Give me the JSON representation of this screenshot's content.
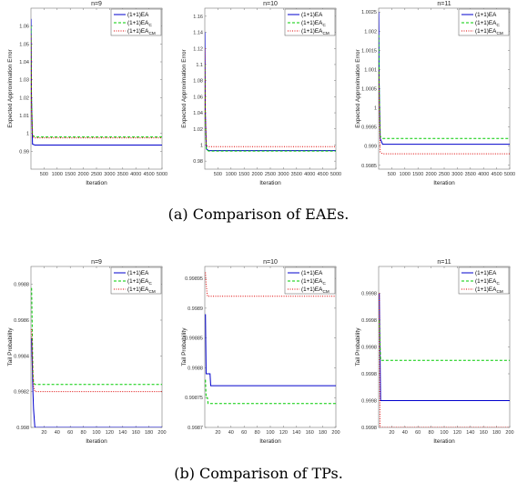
{
  "captions": [
    "(a) Comparison of EAEs.",
    "(b) Comparison of TPs."
  ],
  "legend": [
    {
      "main": "(1+1)EA",
      "sub": "",
      "color": "#0000cc",
      "dash": ""
    },
    {
      "main": "(1+1)EA",
      "sub": "C",
      "color": "#00cc00",
      "dash": "3,2"
    },
    {
      "main": "(1+1)EA",
      "sub": "CM",
      "color": "#dd0000",
      "dash": "1,1.5"
    }
  ],
  "chart_data": [
    {
      "type": "line",
      "title": "n=9",
      "xlabel": "Iteration",
      "ylabel": "Expected Approximation Error",
      "xlim": [
        0,
        5000
      ],
      "ylim": [
        0.98,
        1.07
      ],
      "xticks": [
        500,
        1000,
        1500,
        2000,
        2500,
        3000,
        3500,
        4000,
        4500,
        5000
      ],
      "yticks": [
        0.99,
        1,
        1.01,
        1.02,
        1.03,
        1.04,
        1.05,
        1.06
      ],
      "yticklabels": [
        "0.99",
        "1",
        "1.01",
        "1.02",
        "1.03",
        "1.04",
        "1.05",
        "1.06"
      ],
      "series": [
        {
          "name": "(1+1)EA",
          "x": [
            1,
            20,
            60,
            150,
            5000
          ],
          "y": [
            1.064,
            1.02,
            0.994,
            0.9935,
            0.9935
          ]
        },
        {
          "name": "(1+1)EA_C",
          "x": [
            1,
            20,
            60,
            150,
            5000
          ],
          "y": [
            1.06,
            1.02,
            0.999,
            0.998,
            0.998
          ]
        },
        {
          "name": "(1+1)EA_CM",
          "x": [
            1,
            20,
            60,
            150,
            5000
          ],
          "y": [
            1.055,
            1.015,
            0.998,
            0.9975,
            0.9975
          ]
        }
      ]
    },
    {
      "type": "line",
      "title": "n=10",
      "xlabel": "Iteration",
      "ylabel": "Expected Approximation Error",
      "xlim": [
        0,
        5000
      ],
      "ylim": [
        0.97,
        1.17
      ],
      "xticks": [
        500,
        1000,
        1500,
        2000,
        2500,
        3000,
        3500,
        4000,
        4500,
        5000
      ],
      "yticks": [
        0.98,
        1,
        1.02,
        1.04,
        1.06,
        1.08,
        1.1,
        1.12,
        1.14,
        1.16
      ],
      "yticklabels": [
        "0.98",
        "1",
        "1.02",
        "1.04",
        "1.06",
        "1.08",
        "1.1",
        "1.12",
        "1.14",
        "1.16"
      ],
      "series": [
        {
          "name": "(1+1)EA",
          "x": [
            1,
            20,
            60,
            150,
            5000
          ],
          "y": [
            1.14,
            1.04,
            0.995,
            0.993,
            0.993
          ]
        },
        {
          "name": "(1+1)EA_C",
          "x": [
            1,
            20,
            60,
            150,
            5000
          ],
          "y": [
            1.1,
            1.03,
            0.994,
            0.9925,
            0.9925
          ]
        },
        {
          "name": "(1+1)EA_CM",
          "x": [
            1,
            20,
            60,
            150,
            5000
          ],
          "y": [
            1.12,
            1.04,
            0.999,
            0.998,
            0.998
          ]
        }
      ]
    },
    {
      "type": "line",
      "title": "n=11",
      "xlabel": "Iteration",
      "ylabel": "Expected Approximation Error",
      "xlim": [
        0,
        5000
      ],
      "ylim": [
        0.9984,
        1.0026
      ],
      "xticks": [
        500,
        1000,
        1500,
        2000,
        2500,
        3000,
        3500,
        4000,
        4500,
        5000
      ],
      "yticks": [
        0.9985,
        0.999,
        0.9995,
        1,
        1.0005,
        1.001,
        1.0015,
        1.002,
        1.0025
      ],
      "yticklabels": [
        "0.9985",
        "0.999",
        "0.9995",
        "1",
        "1.0005",
        "1.001",
        "1.0015",
        "1.002",
        "1.0025"
      ],
      "series": [
        {
          "name": "(1+1)EA",
          "x": [
            1,
            20,
            60,
            150,
            5000
          ],
          "y": [
            1.0025,
            1.0006,
            0.9992,
            0.99905,
            0.99905
          ]
        },
        {
          "name": "(1+1)EA_C",
          "x": [
            1,
            20,
            60,
            150,
            5000
          ],
          "y": [
            1.0019,
            1.0006,
            0.99925,
            0.9992,
            0.9992
          ]
        },
        {
          "name": "(1+1)EA_CM",
          "x": [
            1,
            20,
            60,
            150,
            5000
          ],
          "y": [
            1.001,
            1.0002,
            0.99885,
            0.9988,
            0.9988
          ]
        }
      ]
    },
    {
      "type": "line",
      "title": "n=9",
      "xlabel": "Iteration",
      "ylabel": "Tail Probability",
      "xlim": [
        0,
        200
      ],
      "ylim": [
        0.998,
        0.9989
      ],
      "xticks": [
        20,
        40,
        60,
        80,
        100,
        120,
        140,
        160,
        180,
        200
      ],
      "yticks": [
        0.998,
        0.9982,
        0.9984,
        0.9986,
        0.9988
      ],
      "yticklabels": [
        "0.998",
        "0.9982",
        "0.9984",
        "0.9986",
        "0.9988"
      ],
      "series": [
        {
          "name": "(1+1)EA",
          "x": [
            1,
            3,
            4,
            6,
            200
          ],
          "y": [
            0.9985,
            0.9982,
            0.9981,
            0.998,
            0.998
          ]
        },
        {
          "name": "(1+1)EA_C",
          "x": [
            1,
            3,
            4,
            6,
            200
          ],
          "y": [
            0.99878,
            0.9983,
            0.99825,
            0.99824,
            0.99824
          ]
        },
        {
          "name": "(1+1)EA_CM",
          "x": [
            1,
            3,
            4,
            6,
            200
          ],
          "y": [
            0.99855,
            0.9983,
            0.99823,
            0.9982,
            0.9982
          ]
        }
      ]
    },
    {
      "type": "line",
      "title": "n=10",
      "xlabel": "Iteration",
      "ylabel": "Tail Probability",
      "xlim": [
        0,
        200
      ],
      "ylim": [
        0.9987,
        0.99897
      ],
      "xticks": [
        20,
        40,
        60,
        80,
        100,
        120,
        140,
        160,
        180,
        200
      ],
      "yticks": [
        0.9987,
        0.99875,
        0.9988,
        0.99885,
        0.9989,
        0.99895
      ],
      "yticklabels": [
        "0.9987",
        "0.99875",
        "0.9988",
        "0.99885",
        "0.9989",
        "0.99895"
      ],
      "series": [
        {
          "name": "(1+1)EA",
          "x": [
            1,
            2,
            8,
            9,
            200
          ],
          "y": [
            0.99889,
            0.99879,
            0.99879,
            0.99877,
            0.99877
          ]
        },
        {
          "name": "(1+1)EA_C",
          "x": [
            1,
            2,
            4,
            5,
            200
          ],
          "y": [
            0.99878,
            0.99875,
            0.99875,
            0.99874,
            0.99874
          ]
        },
        {
          "name": "(1+1)EA_CM",
          "x": [
            1,
            2,
            3,
            4,
            200
          ],
          "y": [
            0.99896,
            0.99894,
            0.99893,
            0.99892,
            0.99892
          ]
        }
      ]
    },
    {
      "type": "line",
      "title": "n=11",
      "xlabel": "Iteration",
      "ylabel": "Tail Probability",
      "xlim": [
        0,
        200
      ],
      "ylim": [
        0.9998,
        0.99986
      ],
      "xticks": [
        20,
        40,
        60,
        80,
        100,
        120,
        140,
        160,
        180,
        200
      ],
      "yticks": [
        0.9998,
        0.99981,
        0.99982,
        0.99983,
        0.99984,
        0.99985
      ],
      "yticklabels": [
        "0.9998",
        "0.9998",
        "0.9998",
        "0.9998",
        "0.9998",
        "0.9998"
      ],
      "series": [
        {
          "name": "(1+1)EA",
          "x": [
            1,
            3,
            200
          ],
          "y": [
            0.99985,
            0.99981,
            0.99981
          ]
        },
        {
          "name": "(1+1)EA_C",
          "x": [
            1,
            3,
            200
          ],
          "y": [
            0.99984,
            0.999825,
            0.999825
          ]
        },
        {
          "name": "(1+1)EA_CM",
          "x": [
            1,
            2,
            200
          ],
          "y": [
            0.99985,
            0.9998,
            0.9998
          ]
        }
      ]
    }
  ]
}
